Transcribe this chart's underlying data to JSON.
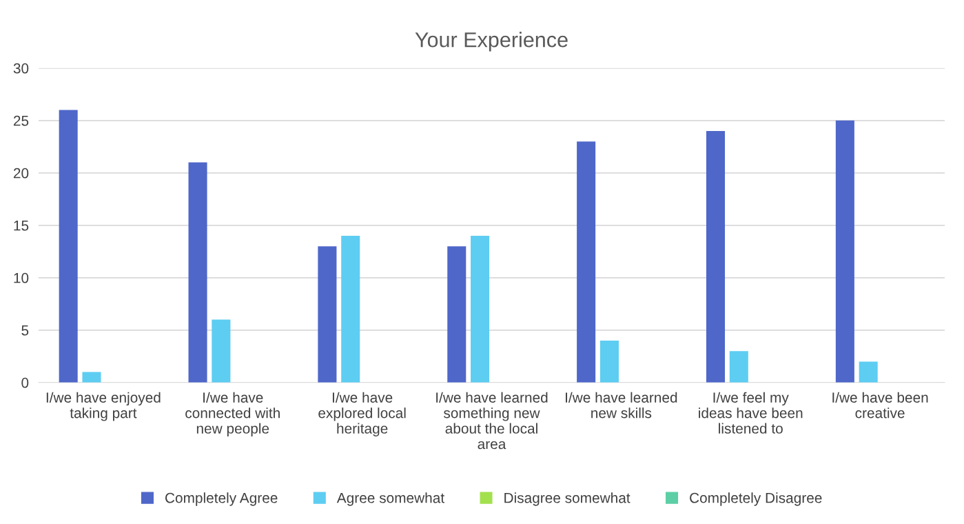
{
  "chart_data": {
    "type": "bar",
    "title": "Your Experience",
    "categories": [
      "I/we have enjoyed taking part",
      "I/we have connected with new people",
      "I/we have explored local heritage",
      "I/we have learned something new about the local area",
      "I/we have learned new skills",
      "I/we feel my ideas have been listened to",
      "I/we have been creative"
    ],
    "series": [
      {
        "name": "Completely Agree",
        "color": "#4f67c9",
        "values": [
          26,
          21,
          13,
          13,
          23,
          24,
          25
        ]
      },
      {
        "name": "Agree somewhat",
        "color": "#5ecdf2",
        "values": [
          1,
          6,
          14,
          14,
          4,
          3,
          2
        ]
      },
      {
        "name": "Disagree somewhat",
        "color": "#a3e04e",
        "values": [
          0,
          0,
          0,
          0,
          0,
          0,
          0
        ]
      },
      {
        "name": "Completely Disagree",
        "color": "#5ccfa6",
        "values": [
          0,
          0,
          0,
          0,
          0,
          0,
          0
        ]
      }
    ],
    "ylim": [
      0,
      30
    ],
    "yticks": [
      0,
      5,
      10,
      15,
      20,
      25,
      30
    ],
    "grid": "y",
    "legend": "bottom"
  }
}
